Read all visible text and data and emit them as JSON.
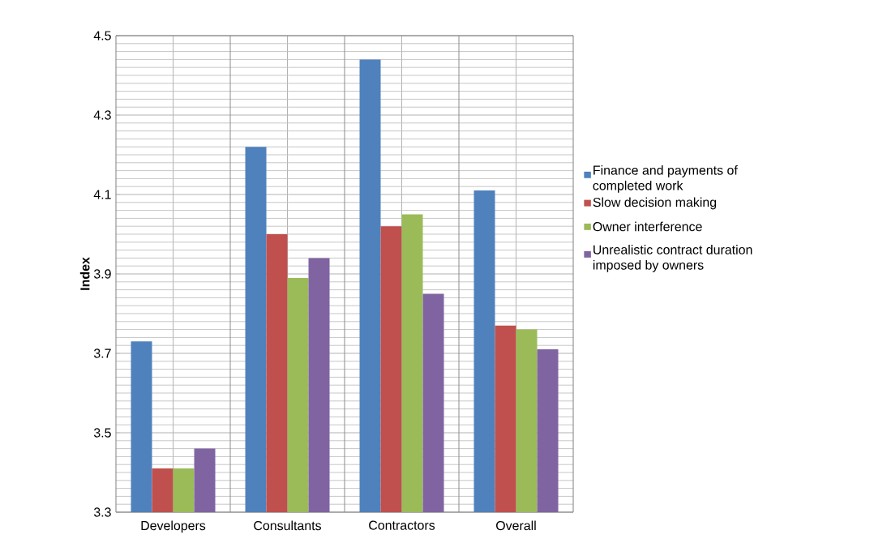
{
  "chart_data": {
    "type": "bar",
    "ylabel": "Index",
    "categories": [
      "Developers",
      "Consultants",
      "Contractors",
      "Overall"
    ],
    "series": [
      {
        "name": "Finance and payments of completed work",
        "color": "#4f81bd",
        "values": [
          3.73,
          4.22,
          4.44,
          4.11
        ]
      },
      {
        "name": "Slow decision making",
        "color": "#c0504d",
        "values": [
          3.41,
          4.0,
          4.02,
          3.77
        ]
      },
      {
        "name": "Owner interference",
        "color": "#9bbb59",
        "values": [
          3.41,
          3.89,
          4.05,
          3.76
        ]
      },
      {
        "name": "Unrealistic contract duration imposed by owners",
        "color": "#8064a2",
        "values": [
          3.46,
          3.94,
          3.85,
          3.71
        ]
      }
    ],
    "ylim": [
      3.3,
      4.5
    ],
    "yticks": [
      3.3,
      3.5,
      3.7,
      3.9,
      4.1,
      4.3,
      4.5
    ],
    "grid": true,
    "legend": "right"
  }
}
